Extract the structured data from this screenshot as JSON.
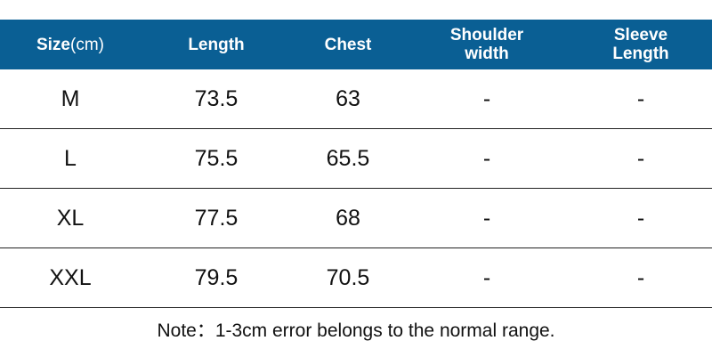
{
  "colors": {
    "header_background": "#0a5f94",
    "header_text": "#ffffff",
    "row_divider": "#222222",
    "body_text": "#111111"
  },
  "table": {
    "headers": [
      {
        "label": "Size",
        "unit": "(cm)"
      },
      {
        "label": "Length",
        "unit": ""
      },
      {
        "label": "Chest",
        "unit": ""
      },
      {
        "label": "Shoulder\nwidth",
        "unit": ""
      },
      {
        "label": "Sleeve\nLength",
        "unit": ""
      }
    ],
    "rows": [
      [
        "M",
        "73.5",
        "63",
        "-",
        "-"
      ],
      [
        "L",
        "75.5",
        "65.5",
        "-",
        "-"
      ],
      [
        "XL",
        "77.5",
        "68",
        "-",
        "-"
      ],
      [
        "XXL",
        "79.5",
        "70.5",
        "-",
        "-"
      ]
    ]
  },
  "note": "Note：1-3cm error belongs to the normal range."
}
